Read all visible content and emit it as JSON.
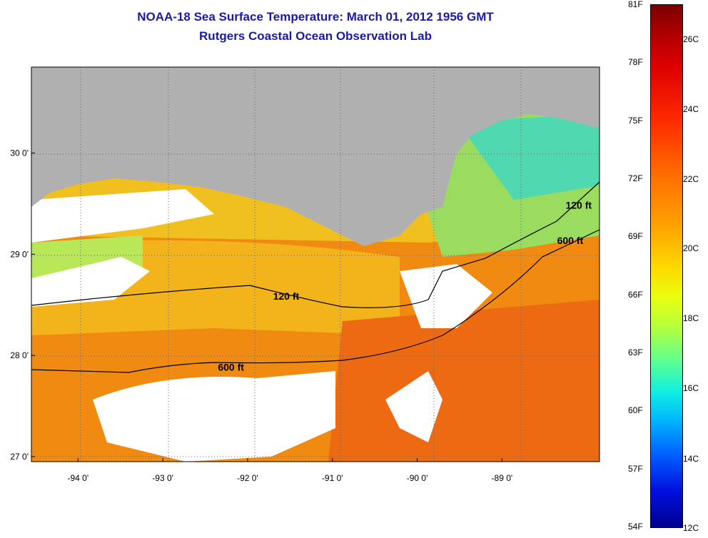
{
  "title": {
    "line1": "NOAA-18 Sea Surface Temperature:  March 01, 2012 1956 GMT",
    "line2": "Rutgers Coastal Ocean Observation Lab"
  },
  "map": {
    "lon_ticks": [
      {
        "value": -94,
        "label": "-94 0'"
      },
      {
        "value": -93,
        "label": "-93 0'"
      },
      {
        "value": -92,
        "label": "-92 0'"
      },
      {
        "value": -91,
        "label": "-91 0'"
      },
      {
        "value": -90,
        "label": "-90 0'"
      },
      {
        "value": -89,
        "label": "-89 0'"
      }
    ],
    "lat_ticks": [
      {
        "value": 30,
        "label": "30 0'"
      },
      {
        "value": 29,
        "label": "29 0'"
      },
      {
        "value": 28,
        "label": "28 0'"
      },
      {
        "value": 27,
        "label": "27 0'"
      }
    ],
    "lon_range": [
      -94.55,
      -87.85
    ],
    "lat_range": [
      26.95,
      30.85
    ],
    "contour_labels": [
      {
        "text": "120 ft",
        "lon": -91.7,
        "lat": 28.55
      },
      {
        "text": "600 ft",
        "lon": -92.35,
        "lat": 27.85
      },
      {
        "text": "120 ft",
        "lon": -88.25,
        "lat": 29.45
      },
      {
        "text": "600 ft",
        "lon": -88.35,
        "lat": 29.1
      }
    ],
    "land_color": "#b0b0b0",
    "cloud_color": "#ffffff"
  },
  "colorbar": {
    "fahrenheit": [
      "81F",
      "78F",
      "75F",
      "72F",
      "69F",
      "66F",
      "63F",
      "60F",
      "57F",
      "54F"
    ],
    "celsius": [
      "26C",
      "24C",
      "22C",
      "20C",
      "18C",
      "16C",
      "14C",
      "12C"
    ]
  }
}
